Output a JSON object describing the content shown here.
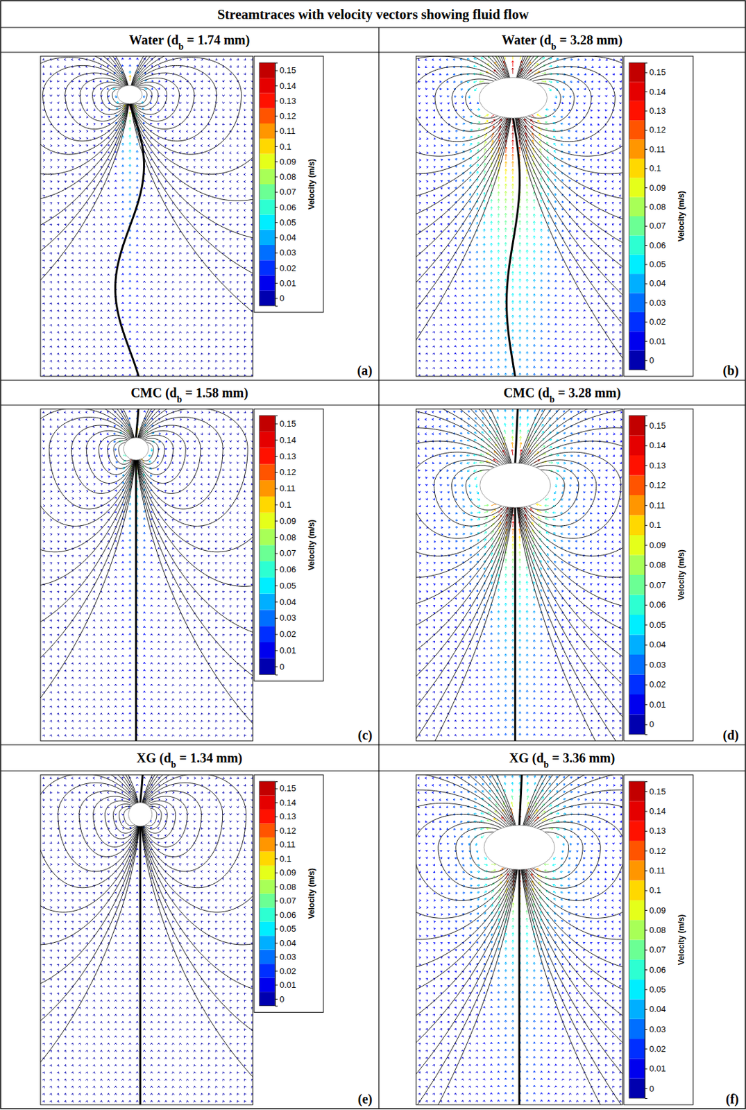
{
  "title": "Streamtraces with velocity vectors showing fluid flow",
  "chart_data": [
    {
      "type": "vector_field",
      "title": "Water (db = 1.74 mm)",
      "panel_label": "(a)",
      "colorbar": {
        "label": "Velocity (m/s)",
        "range": [
          -0.005,
          0.155
        ],
        "ticks": [
          0,
          0.01,
          0.02,
          0.03,
          0.04,
          0.05,
          0.06,
          0.07,
          0.08,
          0.09,
          0.1,
          0.11,
          0.12,
          0.13,
          0.14,
          0.15
        ]
      }
    },
    {
      "type": "vector_field",
      "title": "Water (db = 3.28 mm)",
      "panel_label": "(b)",
      "colorbar": {
        "label": "Velocity (m/s)",
        "range": [
          -0.005,
          0.155
        ],
        "ticks": [
          0,
          0.01,
          0.02,
          0.03,
          0.04,
          0.05,
          0.06,
          0.07,
          0.08,
          0.09,
          0.1,
          0.11,
          0.12,
          0.13,
          0.14,
          0.15
        ]
      }
    },
    {
      "type": "vector_field",
      "title": "CMC (db = 1.58 mm)",
      "panel_label": "(c)",
      "colorbar": {
        "label": "Velocity (m/s)",
        "range": [
          -0.005,
          0.155
        ],
        "ticks": [
          0,
          0.01,
          0.02,
          0.03,
          0.04,
          0.05,
          0.06,
          0.07,
          0.08,
          0.09,
          0.1,
          0.11,
          0.12,
          0.13,
          0.14,
          0.15
        ]
      }
    },
    {
      "type": "vector_field",
      "title": "CMC (db = 3.28 mm)",
      "panel_label": "(d)",
      "colorbar": {
        "label": "Velocity (m/s)",
        "range": [
          -0.005,
          0.155
        ],
        "ticks": [
          0,
          0.01,
          0.02,
          0.03,
          0.04,
          0.05,
          0.06,
          0.07,
          0.08,
          0.09,
          0.1,
          0.11,
          0.12,
          0.13,
          0.14,
          0.15
        ]
      }
    },
    {
      "type": "vector_field",
      "title": "XG (db = 1.34 mm)",
      "panel_label": "(e)",
      "colorbar": {
        "label": "Velocity (m/s)",
        "range": [
          -0.005,
          0.155
        ],
        "ticks": [
          0,
          0.01,
          0.02,
          0.03,
          0.04,
          0.05,
          0.06,
          0.07,
          0.08,
          0.09,
          0.1,
          0.11,
          0.12,
          0.13,
          0.14,
          0.15
        ]
      }
    },
    {
      "type": "vector_field",
      "title": "XG (db = 3.36 mm)",
      "panel_label": "(f)",
      "colorbar": {
        "label": "Velocity (m/s)",
        "range": [
          -0.005,
          0.155
        ],
        "ticks": [
          0,
          0.01,
          0.02,
          0.03,
          0.04,
          0.05,
          0.06,
          0.07,
          0.08,
          0.09,
          0.1,
          0.11,
          0.12,
          0.13,
          0.14,
          0.15
        ]
      }
    }
  ]
}
